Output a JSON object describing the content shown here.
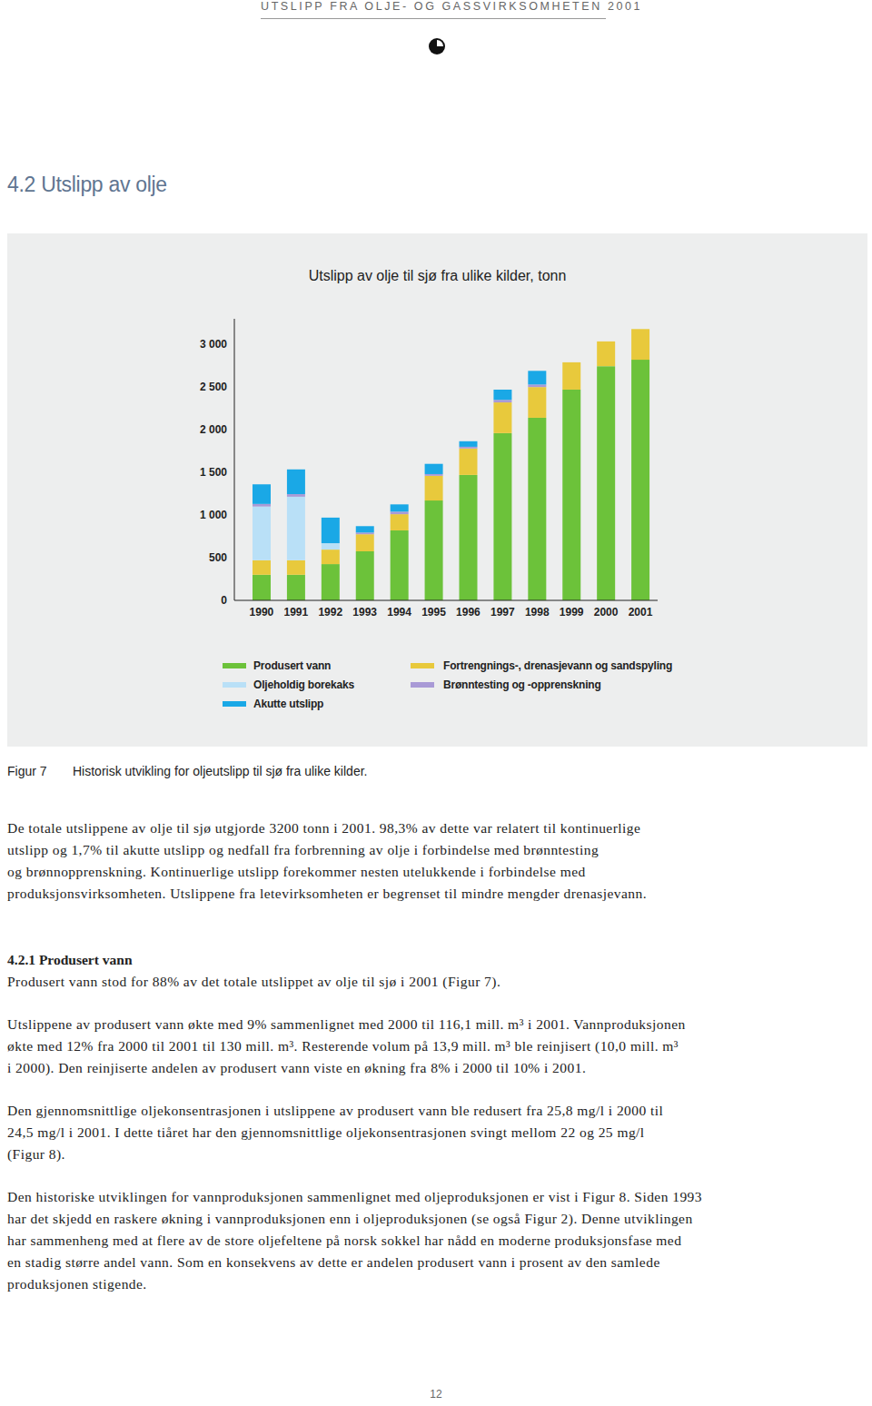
{
  "header": "UTSLIPP FRA OLJE- OG GASSVIRKSOMHETEN 2001",
  "section_title": "4.2 Utslipp av olje",
  "chart_data": {
    "type": "bar",
    "title": "Utslipp av olje til sjø fra ulike kilder, tonn",
    "stacked": true,
    "grid": false,
    "legend": "bottom",
    "categories": [
      "1990",
      "1991",
      "1992",
      "1993",
      "1994",
      "1995",
      "1996",
      "1997",
      "1998",
      "1999",
      "2000",
      "2001"
    ],
    "series": [
      {
        "name": "Produsert vann",
        "color": "#6cc23a",
        "values": [
          300,
          300,
          425,
          575,
          820,
          1170,
          1470,
          1960,
          2140,
          2470,
          2745,
          2820
        ]
      },
      {
        "name": "Fortrengnings-, drenasjevann og sandspyling",
        "color": "#e8c93c",
        "values": [
          170,
          170,
          170,
          200,
          190,
          290,
          310,
          360,
          360,
          320,
          290,
          360
        ]
      },
      {
        "name": "Oljeholdig borekaks",
        "color": "#b9e0f7",
        "values": [
          630,
          745,
          75,
          0,
          0,
          0,
          0,
          0,
          0,
          0,
          0,
          0
        ]
      },
      {
        "name": "Brønntesting og -opprenskning",
        "color": "#a99ad6",
        "values": [
          30,
          30,
          0,
          20,
          30,
          20,
          20,
          30,
          30,
          0,
          0,
          0
        ]
      },
      {
        "name": "Akutte utslipp",
        "color": "#1aa8e6",
        "values": [
          230,
          290,
          300,
          75,
          85,
          120,
          65,
          120,
          160,
          0,
          0,
          0
        ]
      }
    ],
    "ylim": [
      0,
      3300
    ],
    "yticks": [
      0,
      500,
      {
        "value": 1000,
        "label": "1 000"
      },
      {
        "value": 1500,
        "label": "1 500"
      },
      {
        "value": 2000,
        "label": "2 000"
      },
      {
        "value": 2500,
        "label": "2 500"
      },
      {
        "value": 3000,
        "label": "3 000"
      }
    ]
  },
  "figure_caption": {
    "label": "Figur 7",
    "text": "Historisk utvikling for oljeutslipp til sjø fra ulike kilder."
  },
  "body": [
    {
      "type": "p",
      "lines": [
        "De totale utslippene av olje til sjø utgjorde 3200 tonn i 2001. 98,3% av dette var relatert til kontinuerlige",
        "utslipp og 1,7% til akutte utslipp og nedfall fra forbrenning av olje i forbindelse med brønntesting",
        "og brønnopprenskning. Kontinuerlige utslipp forekommer nesten utelukkende i forbindelse med",
        "produksjonsvirksomheten. Utslippene fra letevirksomheten er begrenset til mindre mengder drenasjevann."
      ]
    },
    {
      "type": "h",
      "text": "4.2.1 Produsert vann"
    },
    {
      "type": "p",
      "lines": [
        "Produsert vann stod for 88% av det totale utslippet av olje til sjø i 2001 (Figur 7)."
      ]
    },
    {
      "type": "p",
      "lines": [
        "Utslippene av produsert vann økte med 9% sammenlignet med 2000 til 116,1 mill. m³ i 2001. Vannproduksjonen",
        "økte med 12% fra 2000 til 2001 til 130 mill. m³. Resterende volum på 13,9 mill. m³ ble reinjisert (10,0 mill. m³",
        "i 2000). Den reinjiserte andelen av produsert vann viste en økning fra 8% i 2000 til 10% i 2001."
      ]
    },
    {
      "type": "p",
      "lines": [
        "Den gjennomsnittlige oljekonsentrasjonen i utslippene av produsert vann ble redusert fra 25,8 mg/l i 2000 til",
        "24,5 mg/l i 2001. I dette tiåret har den gjennomsnittlige oljekonsentrasjonen svingt mellom 22 og 25 mg/l",
        "(Figur 8)."
      ]
    },
    {
      "type": "p",
      "lines": [
        "Den historiske utviklingen for vannproduksjonen sammenlignet med oljeproduksjonen er vist i Figur 8. Siden 1993",
        "har det skjedd en raskere økning i vannproduksjonen enn i oljeproduksjonen (se også Figur 2). Denne utviklingen",
        "har sammenheng med at flere av de store oljefeltene på norsk sokkel har nådd en moderne produksjonsfase med",
        "en stadig større andel vann. Som en konsekvens av dette er andelen produsert vann i prosent av den samlede",
        "produksjonen stigende."
      ]
    }
  ],
  "page_number": "12"
}
